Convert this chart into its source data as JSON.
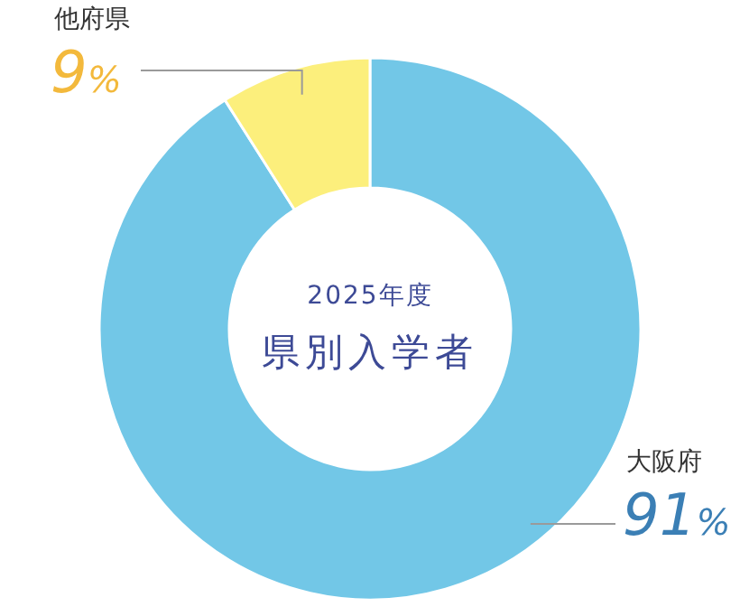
{
  "chart_data": {
    "type": "donut",
    "title": "2025年度",
    "subtitle": "県別入学者",
    "categories": [
      "大阪府",
      "他府県"
    ],
    "values": [
      91,
      9
    ],
    "colors": [
      "#72c7e7",
      "#fcef7c"
    ],
    "value_labels": [
      "91%",
      "9%"
    ],
    "legend": false
  }
}
